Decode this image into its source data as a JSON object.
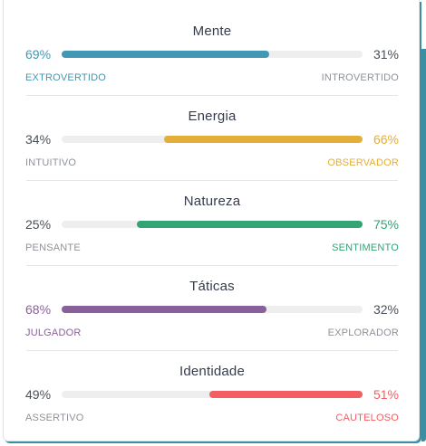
{
  "traits": [
    {
      "title": "Mente",
      "left_pct": "69%",
      "right_pct": "31%",
      "left_label": "EXTROVERTIDO",
      "right_label": "INTROVERTIDO",
      "dominant": "left",
      "fraction": 0.69,
      "color": "#4298b4"
    },
    {
      "title": "Energia",
      "left_pct": "34%",
      "right_pct": "66%",
      "left_label": "INTUITIVO",
      "right_label": "OBSERVADOR",
      "dominant": "right",
      "fraction": 0.66,
      "color": "#e4ae3a"
    },
    {
      "title": "Natureza",
      "left_pct": "25%",
      "right_pct": "75%",
      "left_label": "PENSANTE",
      "right_label": "SENTIMENTO",
      "dominant": "right",
      "fraction": 0.75,
      "color": "#33a474"
    },
    {
      "title": "Táticas",
      "left_pct": "68%",
      "right_pct": "32%",
      "left_label": "JULGADOR",
      "right_label": "EXPLORADOR",
      "dominant": "left",
      "fraction": 0.68,
      "color": "#88619a"
    },
    {
      "title": "Identidade",
      "left_pct": "49%",
      "right_pct": "51%",
      "left_label": "ASSERTIVO",
      "right_label": "CAUTELOSO",
      "dominant": "right",
      "fraction": 0.51,
      "color": "#f25e62"
    }
  ],
  "colors": {
    "track": "#eeeeee",
    "neutral_text": "#4a4f57",
    "neutral_label": "#8e9399"
  }
}
